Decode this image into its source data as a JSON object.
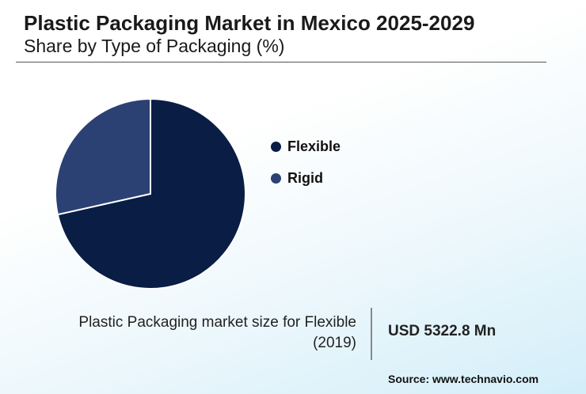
{
  "header": {
    "title": "Plastic Packaging Market in Mexico 2025-2029",
    "subtitle": "Share by Type of Packaging (%)"
  },
  "chart_data": {
    "type": "pie",
    "categories": [
      "Flexible",
      "Rigid"
    ],
    "values": [
      71.5,
      28.5
    ],
    "colors": [
      "#0a1d45",
      "#2b4173"
    ],
    "legend_placement": "right"
  },
  "legend": {
    "items": [
      {
        "label": "Flexible",
        "color": "#0a1d45"
      },
      {
        "label": "Rigid",
        "color": "#2b4173"
      }
    ]
  },
  "fact": {
    "label": "Plastic Packaging market size for Flexible (2019)",
    "value": "USD 5322.8 Mn"
  },
  "source": "Source: www.technavio.com"
}
